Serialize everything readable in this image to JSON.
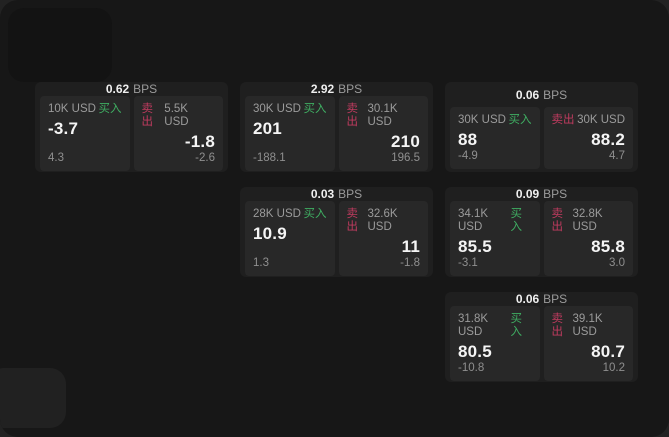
{
  "labels": {
    "bps_unit": "BPS",
    "buy": "买入",
    "sell": "卖出"
  },
  "colors": {
    "page_background": "#222222",
    "window_background": "#171717",
    "card_background": "#1f1f1f",
    "panel_background": "#282828",
    "buy_green": "#3fae62",
    "sell_red": "#c03b5f"
  },
  "cards": [
    {
      "grid": {
        "col": 1,
        "row": 1
      },
      "bps": "0.62",
      "buy": {
        "amount": "10K USD",
        "price": "-3.7",
        "delta": "4.3"
      },
      "sell": {
        "amount": "5.5K USD",
        "price": "-1.8",
        "delta": "-2.6"
      }
    },
    {
      "grid": {
        "col": 2,
        "row": 1
      },
      "bps": "2.92",
      "buy": {
        "amount": "30K USD",
        "price": "201",
        "delta": "-188.1"
      },
      "sell": {
        "amount": "30.1K USD",
        "price": "210",
        "delta": "196.5"
      }
    },
    {
      "grid": {
        "col": 3,
        "row": 1
      },
      "bps": "0.06",
      "buy": {
        "amount": "30K USD",
        "price": "88",
        "delta": "-4.9"
      },
      "sell": {
        "amount": "30K USD",
        "price": "88.2",
        "delta": "4.7"
      }
    },
    {
      "grid": {
        "col": 2,
        "row": 2
      },
      "bps": "0.03",
      "buy": {
        "amount": "28K USD",
        "price": "10.9",
        "delta": "1.3"
      },
      "sell": {
        "amount": "32.6K USD",
        "price": "11",
        "delta": "-1.8"
      }
    },
    {
      "grid": {
        "col": 3,
        "row": 2
      },
      "bps": "0.09",
      "buy": {
        "amount": "34.1K USD",
        "price": "85.5",
        "delta": "-3.1"
      },
      "sell": {
        "amount": "32.8K USD",
        "price": "85.8",
        "delta": "3.0"
      }
    },
    {
      "grid": {
        "col": 3,
        "row": 3
      },
      "bps": "0.06",
      "buy": {
        "amount": "31.8K USD",
        "price": "80.5",
        "delta": "-10.8"
      },
      "sell": {
        "amount": "39.1K USD",
        "price": "80.7",
        "delta": "10.2"
      }
    }
  ]
}
